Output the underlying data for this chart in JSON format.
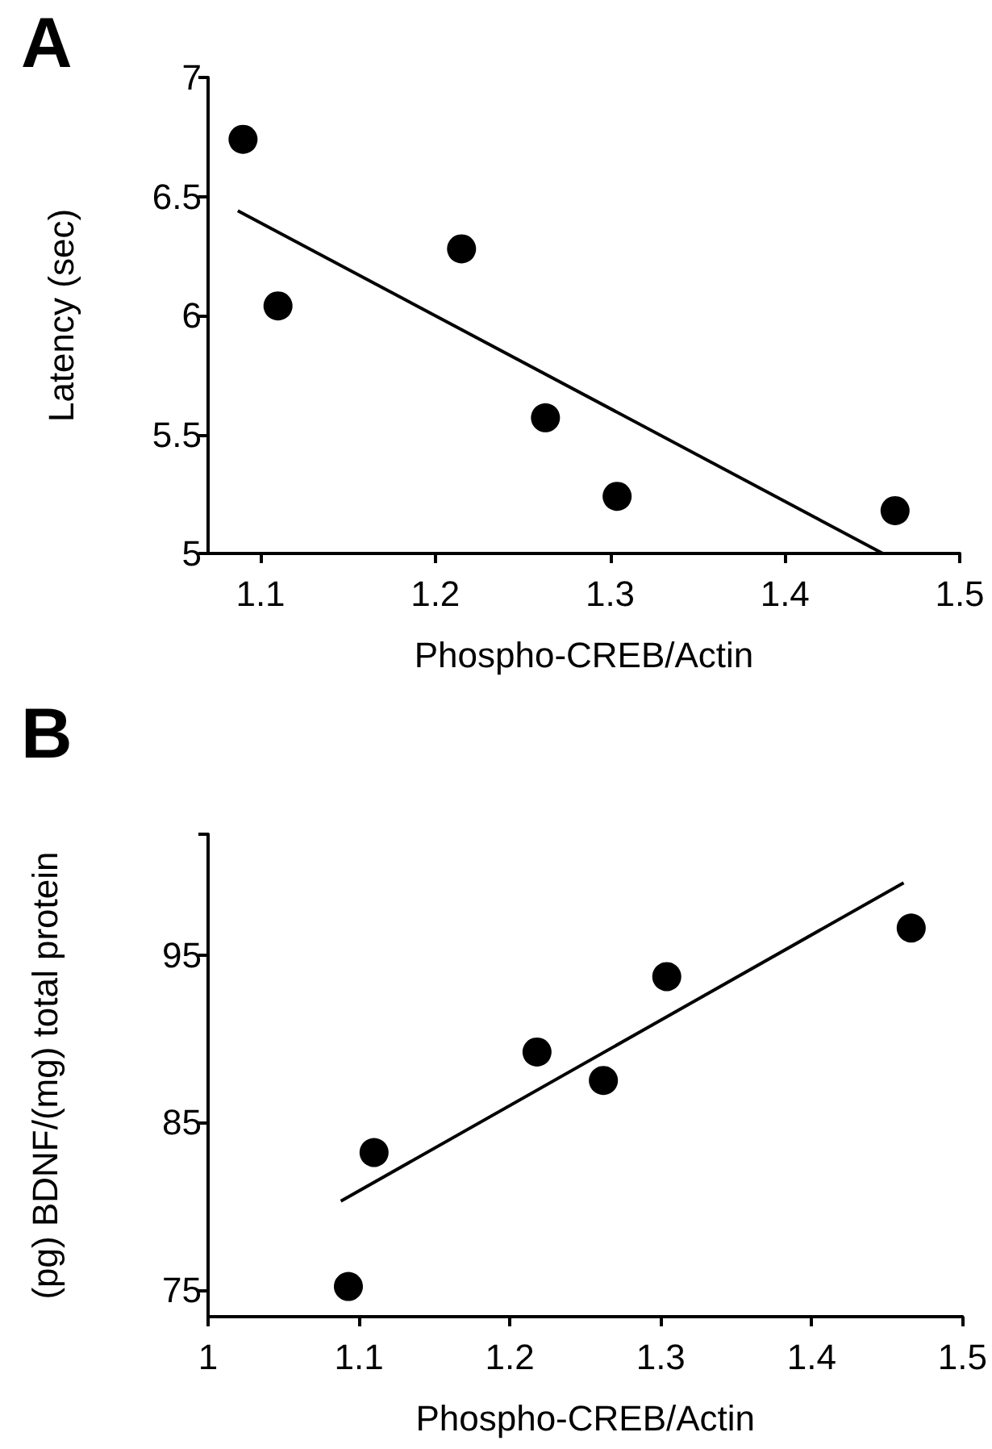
{
  "chart_data": [
    {
      "type": "scatter",
      "title": "A",
      "xlabel": "Phospho-CREB/Actin",
      "ylabel": "Latency (sec)",
      "xlim": [
        1.07,
        1.5
      ],
      "xticks": [
        1.1,
        1.2,
        1.3,
        1.4,
        1.5
      ],
      "ylim": [
        5,
        7
      ],
      "yticks": [
        5,
        5.5,
        6,
        6.5,
        7
      ],
      "grid": false,
      "marker": "circle",
      "series": [
        {
          "color": "#000000",
          "x": [
            1.09,
            1.11,
            1.215,
            1.263,
            1.304,
            1.463
          ],
          "values": [
            6.74,
            6.04,
            6.28,
            5.57,
            5.24,
            5.18
          ]
        },
        {
          "type": "line",
          "color": "#000000",
          "marker": "none",
          "x": [
            1.087,
            1.456
          ],
          "values": [
            6.44,
            5.0
          ]
        }
      ]
    },
    {
      "type": "scatter",
      "title": "B",
      "xlabel": "Phospho-CREB/Actin",
      "ylabel": "(pg) BDNF/(mg) total protein",
      "xlim": [
        1,
        1.5
      ],
      "xticks": [
        1,
        1.1,
        1.2,
        1.3,
        1.4,
        1.5
      ],
      "ylim": [
        73.4,
        102.2
      ],
      "yticks": [
        75,
        85,
        95,
        {
          "value": 102.2,
          "label": null
        }
      ],
      "grid": false,
      "marker": "circle",
      "series": [
        {
          "color": "#000000",
          "x": [
            1.093,
            1.11,
            1.218,
            1.262,
            1.304,
            1.466
          ],
          "values": [
            75.2,
            83.2,
            89.2,
            87.5,
            93.7,
            96.6
          ]
        },
        {
          "type": "line",
          "color": "#000000",
          "marker": "none",
          "x": [
            1.088,
            1.461
          ],
          "values": [
            80.3,
            99.3
          ]
        }
      ]
    }
  ]
}
